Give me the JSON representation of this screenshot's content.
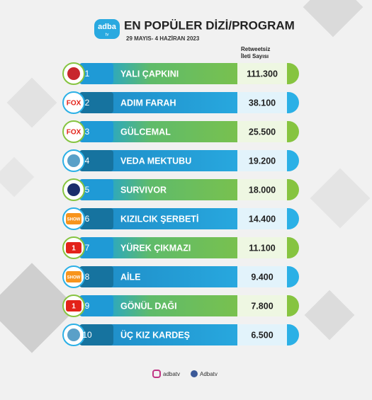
{
  "header": {
    "logo": "adba",
    "logo_sub": "tv",
    "title": "EN POPÜLER DİZİ/PROGRAM",
    "subtitle": "29 MAYIS- 4 HAZİRAN 2023",
    "column_header": [
      "Retweetsiz",
      "İleti Sayısı"
    ]
  },
  "table": {
    "rows": [
      {
        "rank": "1",
        "name": "YALI ÇAPKINI",
        "value": "111.300"
      },
      {
        "rank": "2",
        "channel": "FOX",
        "name": "ADIM FARAH",
        "value": "38.100"
      },
      {
        "rank": "3",
        "channel": "FOX",
        "name": "GÜLCEMAL",
        "value": "25.500"
      },
      {
        "rank": "4",
        "name": "VEDA MEKTUBU",
        "value": "19.200"
      },
      {
        "rank": "5",
        "name": "SURVIVOR",
        "value": "18.000"
      },
      {
        "rank": "6",
        "channel": "SHOW",
        "name": "KIZILCIK ŞERBETİ",
        "value": "14.400"
      },
      {
        "rank": "7",
        "channel": "1",
        "name": "YÜREK ÇIKMAZI",
        "value": "11.100"
      },
      {
        "rank": "8",
        "channel": "SHOW",
        "name": "AİLE",
        "value": "9.400"
      },
      {
        "rank": "9",
        "channel": "1",
        "name": "GÖNÜL DAĞI",
        "value": "7.800"
      },
      {
        "rank": "10",
        "name": "ÜÇ KIZ KARDEŞ",
        "value": "6.500"
      }
    ]
  },
  "footer": {
    "instagram": "adbatv",
    "facebook": "Adbatv"
  }
}
